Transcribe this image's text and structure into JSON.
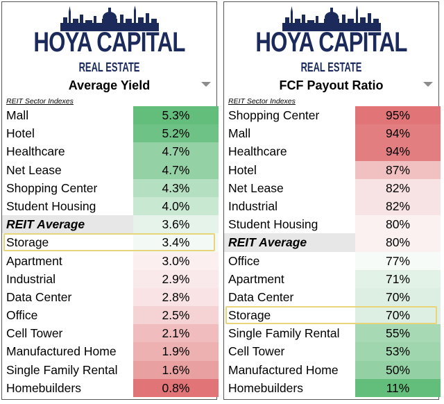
{
  "brand": {
    "name": "HOYA CAPITAL",
    "subtitle": "REAL ESTATE",
    "color": "#1b2a5b"
  },
  "left_panel": {
    "title": "Average Yield",
    "caption": "REIT Sector Indexes",
    "highlighted_row": "Storage",
    "rows": [
      {
        "label": "Mall",
        "value": "5.3%",
        "color": "#63be7b"
      },
      {
        "label": "Hotel",
        "value": "5.2%",
        "color": "#6fc285"
      },
      {
        "label": "Healthcare",
        "value": "4.7%",
        "color": "#94d2a5"
      },
      {
        "label": "Net Lease",
        "value": "4.7%",
        "color": "#94d2a5"
      },
      {
        "label": "Shopping Center",
        "value": "4.3%",
        "color": "#b4dfc0"
      },
      {
        "label": "Student Housing",
        "value": "4.0%",
        "color": "#c9e8d2"
      },
      {
        "label": "REIT Average",
        "value": "3.6%",
        "color": "#e6f3ea",
        "average": true
      },
      {
        "label": "Storage",
        "value": "3.4%",
        "color": "#f3f9f5"
      },
      {
        "label": "Apartment",
        "value": "3.0%",
        "color": "#fbeff0"
      },
      {
        "label": "Industrial",
        "value": "2.9%",
        "color": "#fae9ea"
      },
      {
        "label": "Data Center",
        "value": "2.8%",
        "color": "#f9e3e4"
      },
      {
        "label": "Office",
        "value": "2.5%",
        "color": "#f5d2d3"
      },
      {
        "label": "Cell Tower",
        "value": "2.1%",
        "color": "#f0bcbd"
      },
      {
        "label": "Manufactured Home",
        "value": "1.9%",
        "color": "#edb1b2"
      },
      {
        "label": "Single Family Rental",
        "value": "1.6%",
        "color": "#e9a0a1"
      },
      {
        "label": "Homebuilders",
        "value": "0.8%",
        "color": "#e07477"
      }
    ]
  },
  "right_panel": {
    "title": "FCF Payout Ratio",
    "caption": "REIT Sector Indexes",
    "highlighted_row": "Storage",
    "rows": [
      {
        "label": "Shopping Center",
        "value": "95%",
        "color": "#e07477"
      },
      {
        "label": "Mall",
        "value": "94%",
        "color": "#e27d80"
      },
      {
        "label": "Healthcare",
        "value": "94%",
        "color": "#e27d80"
      },
      {
        "label": "Hotel",
        "value": "87%",
        "color": "#f1c0c1"
      },
      {
        "label": "Net Lease",
        "value": "82%",
        "color": "#f8e3e4"
      },
      {
        "label": "Industrial",
        "value": "82%",
        "color": "#f8e3e4"
      },
      {
        "label": "Student Housing",
        "value": "80%",
        "color": "#fbf1f1"
      },
      {
        "label": "REIT Average",
        "value": "80%",
        "color": "#fbf1f1",
        "average": true
      },
      {
        "label": "Office",
        "value": "77%",
        "color": "#f7fbf8"
      },
      {
        "label": "Apartment",
        "value": "71%",
        "color": "#e3f2e7"
      },
      {
        "label": "Data Center",
        "value": "70%",
        "color": "#ddefe2"
      },
      {
        "label": "Storage",
        "value": "70%",
        "color": "#ddefe2"
      },
      {
        "label": "Single Family Rental",
        "value": "55%",
        "color": "#a7d9b4"
      },
      {
        "label": "Cell Tower",
        "value": "53%",
        "color": "#9fd6ae"
      },
      {
        "label": "Manufactured Home",
        "value": "50%",
        "color": "#93d1a4"
      },
      {
        "label": "Homebuilders",
        "value": "11%",
        "color": "#63be7b"
      }
    ]
  }
}
